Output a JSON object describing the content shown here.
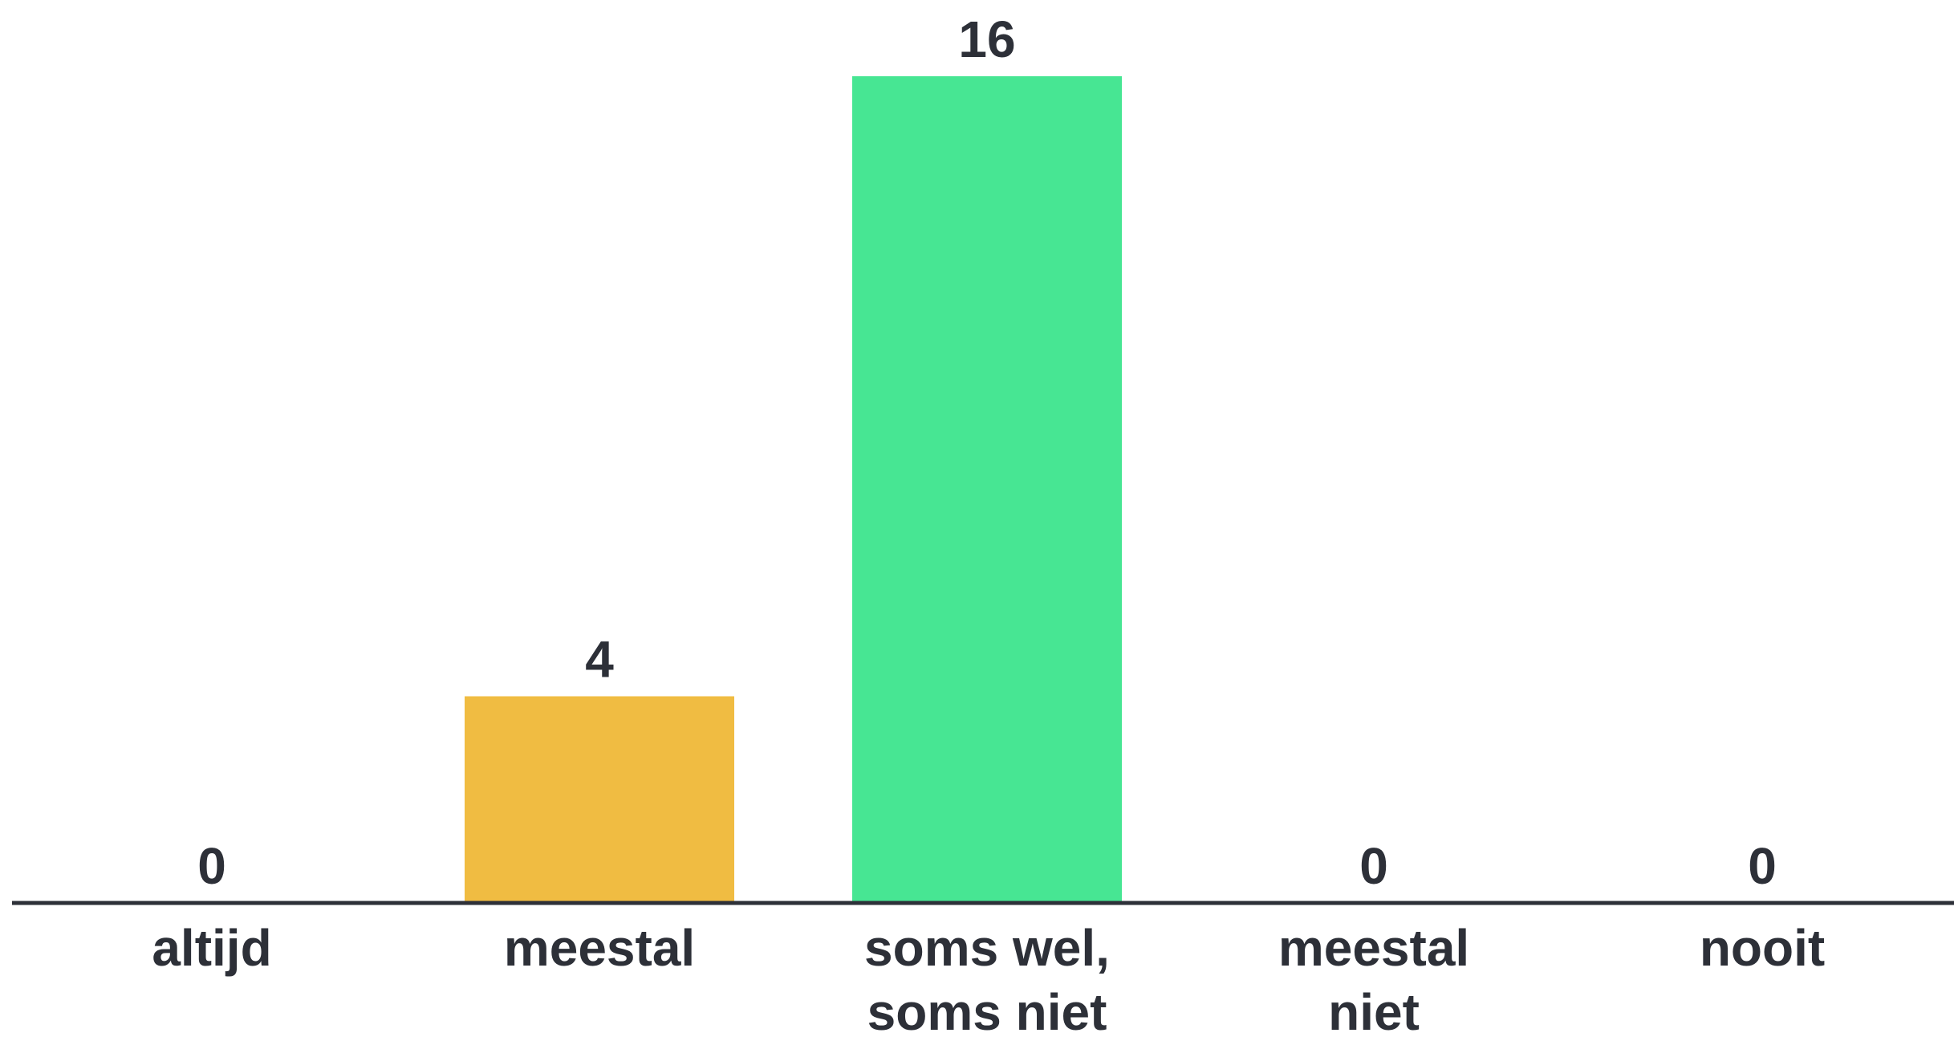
{
  "chart_data": {
    "type": "bar",
    "categories": [
      [
        "altijd"
      ],
      [
        "meestal"
      ],
      [
        "soms wel,",
        "soms niet"
      ],
      [
        "meestal",
        "niet"
      ],
      [
        "nooit"
      ]
    ],
    "values": [
      0,
      4,
      16,
      0,
      0
    ],
    "colors": [
      "#f0bc42",
      "#f0bc42",
      "#47e693",
      "#f0bc42",
      "#f0bc42"
    ],
    "axis_color": "#2d3038",
    "ylim": [
      0,
      16
    ],
    "grid": false,
    "legend": "none"
  }
}
